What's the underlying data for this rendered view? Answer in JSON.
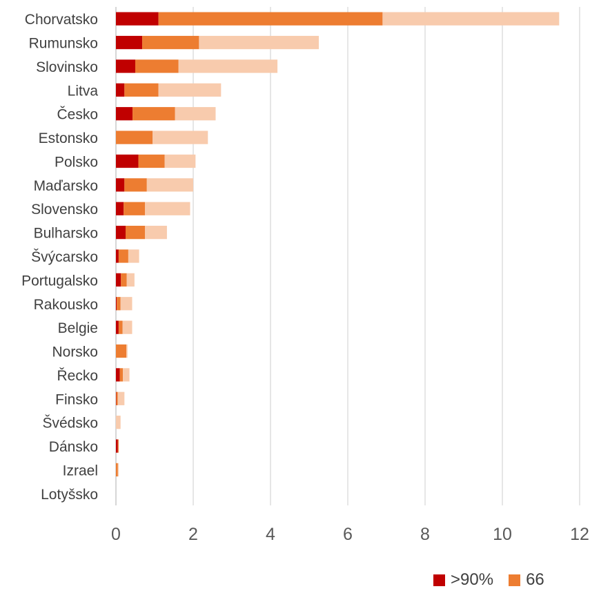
{
  "chart_data": {
    "type": "bar",
    "orientation": "horizontal",
    "stacked": true,
    "categories": [
      "Chorvatsko",
      "Rumunsko",
      "Slovinsko",
      "Litva",
      "Česko",
      "Estonsko",
      "Polsko",
      "Maďarsko",
      "Slovensko",
      "Bulharsko",
      "Švýcarsko",
      "Portugalsko",
      "Rakousko",
      "Belgie",
      "Norsko",
      "Řecko",
      "Finsko",
      "Švédsko",
      "Dánsko",
      "Izrael",
      "Lotyšsko"
    ],
    "series": [
      {
        "name": ">90%",
        "color": "#c00000",
        "values": [
          1.1,
          0.68,
          0.5,
          0.22,
          0.43,
          0.0,
          0.58,
          0.22,
          0.2,
          0.25,
          0.07,
          0.13,
          0.02,
          0.07,
          0.0,
          0.1,
          0.01,
          0.0,
          0.05,
          0.0,
          0.0
        ]
      },
      {
        "name": "66",
        "color": "#ed7d31",
        "values": [
          5.8,
          1.47,
          1.12,
          0.88,
          1.1,
          0.95,
          0.68,
          0.58,
          0.55,
          0.5,
          0.25,
          0.15,
          0.1,
          0.1,
          0.27,
          0.08,
          0.04,
          0.0,
          0.02,
          0.05,
          0.0
        ]
      },
      {
        "color": "#f8cbad",
        "values": [
          4.57,
          3.1,
          2.56,
          1.62,
          1.05,
          1.43,
          0.8,
          1.2,
          1.17,
          0.57,
          0.28,
          0.2,
          0.3,
          0.25,
          0.03,
          0.17,
          0.17,
          0.12,
          0.0,
          0.02,
          0.0
        ]
      }
    ],
    "xlim": [
      0,
      12
    ],
    "xticks": [
      0,
      2,
      4,
      6,
      8,
      10,
      12
    ],
    "grid": true,
    "legend_position": "bottom-right"
  },
  "legend": [
    {
      "label": ">90%",
      "color": "#c00000"
    },
    {
      "label": "66",
      "color": "#ed7d31"
    }
  ]
}
